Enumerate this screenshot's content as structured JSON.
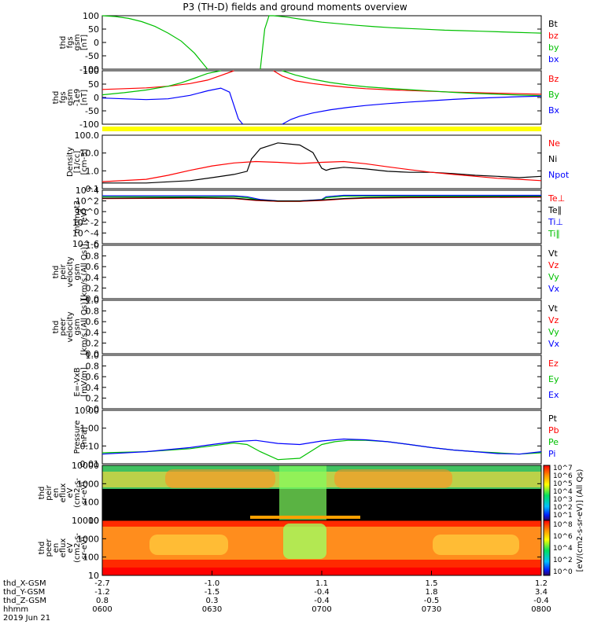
{
  "title": "P3 (TH-D) fields and ground moments overview",
  "date_label": "2019 Jun 21",
  "colors": {
    "black": "#000000",
    "red": "#ff0000",
    "green": "#00c000",
    "blue": "#0000ff",
    "yellow": "#ffff00"
  },
  "chart_data": [
    {
      "id": "fgs",
      "type": "line",
      "ylabel": [
        "thd",
        "fgs",
        "gsm",
        "[nT]"
      ],
      "yticks": [
        "100",
        "50",
        "0",
        "-50",
        "-100"
      ],
      "ylim": [
        -100,
        100
      ],
      "legend": [
        {
          "text": "Bt",
          "color": "#000000"
        },
        {
          "text": "bz",
          "color": "#ff0000"
        },
        {
          "text": "by",
          "color": "#00c000"
        },
        {
          "text": "bx",
          "color": "#0000ff"
        }
      ],
      "series": [
        {
          "name": "by_left",
          "color": "#00c000",
          "x": [
            0,
            3,
            6,
            9,
            12,
            15,
            18,
            21,
            24
          ],
          "y": [
            100,
            97,
            90,
            78,
            60,
            35,
            5,
            -40,
            -100
          ]
        },
        {
          "name": "by_right",
          "color": "#00c000",
          "x": [
            36,
            37,
            38,
            39,
            42,
            46,
            50,
            54,
            58,
            62,
            66,
            70,
            74,
            78,
            82,
            86,
            90,
            94,
            98,
            100
          ],
          "y": [
            -100,
            50,
            100,
            100,
            95,
            85,
            76,
            70,
            64,
            59,
            55,
            52,
            49,
            46,
            44,
            42,
            40,
            38,
            36,
            35
          ]
        }
      ]
    },
    {
      "id": "fgs_sm",
      "type": "line",
      "ylabel": [
        "thd",
        "fgs",
        "gsm",
        "-1e9",
        "[nT]"
      ],
      "yticks": [
        "100",
        "50",
        "0",
        "-50",
        "-100"
      ],
      "ylim": [
        -100,
        100
      ],
      "legend": [
        {
          "text": "Bz",
          "color": "#ff0000"
        },
        {
          "text": "By",
          "color": "#00c000"
        },
        {
          "text": "Bx",
          "color": "#0000ff"
        }
      ],
      "series": [
        {
          "name": "Bz_left",
          "color": "#ff0000",
          "x": [
            0,
            5,
            10,
            15,
            20,
            24,
            27,
            30
          ],
          "y": [
            30,
            33,
            36,
            42,
            52,
            65,
            82,
            100
          ]
        },
        {
          "name": "By_left",
          "color": "#00c000",
          "x": [
            0,
            5,
            10,
            15,
            18,
            21,
            24,
            27
          ],
          "y": [
            10,
            18,
            28,
            42,
            55,
            72,
            90,
            100
          ]
        },
        {
          "name": "Bx_left",
          "color": "#0000ff",
          "x": [
            0,
            5,
            10,
            15,
            20,
            24,
            27,
            29,
            30,
            31,
            32
          ],
          "y": [
            -2,
            -5,
            -8,
            -5,
            8,
            25,
            35,
            20,
            -30,
            -80,
            -100
          ]
        },
        {
          "name": "Bz_right",
          "color": "#ff0000",
          "x": [
            39,
            41,
            44,
            48,
            52,
            56,
            60,
            65,
            70,
            75,
            80,
            85,
            90,
            95,
            100
          ],
          "y": [
            100,
            80,
            62,
            52,
            44,
            38,
            33,
            29,
            26,
            23,
            20,
            18,
            16,
            14,
            12
          ]
        },
        {
          "name": "By_right",
          "color": "#00c000",
          "x": [
            41,
            44,
            48,
            52,
            56,
            60,
            65,
            70,
            75,
            80,
            85,
            90,
            95,
            100
          ],
          "y": [
            100,
            84,
            68,
            56,
            47,
            40,
            34,
            29,
            24,
            19,
            15,
            12,
            9,
            7
          ]
        },
        {
          "name": "Bx_right",
          "color": "#0000ff",
          "x": [
            41,
            43,
            45,
            48,
            52,
            56,
            60,
            65,
            70,
            75,
            80,
            85,
            90,
            95,
            100
          ],
          "y": [
            -100,
            -82,
            -70,
            -58,
            -46,
            -37,
            -30,
            -23,
            -17,
            -12,
            -7,
            -3,
            0,
            3,
            5
          ]
        }
      ]
    },
    {
      "id": "density",
      "type": "line",
      "ylabel": [
        "Density",
        "[1/cc]",
        "[cm-3]"
      ],
      "yticks": [
        "100.0",
        "10.0",
        "1.0",
        "0.1"
      ],
      "log": true,
      "ylim": [
        0.03,
        300
      ],
      "legend": [
        {
          "text": "Ne",
          "color": "#ff0000"
        },
        {
          "text": "Ni",
          "color": "#000000"
        },
        {
          "text": "Npot",
          "color": "#0000ff"
        }
      ],
      "series": [
        {
          "name": "Ni",
          "color": "#000000",
          "x": [
            0,
            10,
            20,
            25,
            30,
            33,
            34,
            36,
            40,
            45,
            48,
            50,
            51,
            52,
            55,
            60,
            65,
            70,
            75,
            80,
            85,
            90,
            95,
            100
          ],
          "y": [
            0.08,
            0.08,
            0.12,
            0.2,
            0.35,
            0.6,
            5,
            30,
            80,
            55,
            15,
            1.0,
            0.7,
            0.9,
            1.2,
            0.9,
            0.6,
            0.5,
            0.5,
            0.4,
            0.3,
            0.25,
            0.2,
            0.25
          ]
        },
        {
          "name": "Ne",
          "color": "#ff0000",
          "x": [
            0,
            10,
            15,
            20,
            25,
            30,
            35,
            40,
            45,
            50,
            55,
            60,
            65,
            70,
            75,
            80,
            85,
            90,
            95,
            100
          ],
          "y": [
            0.1,
            0.15,
            0.3,
            0.7,
            1.5,
            2.5,
            3.2,
            2.8,
            2.3,
            2.8,
            3.2,
            2.2,
            1.3,
            0.8,
            0.5,
            0.35,
            0.25,
            0.18,
            0.15,
            0.12
          ]
        }
      ]
    },
    {
      "id": "temperature",
      "type": "line",
      "ylabel": [
        "momgt3",
        "[eV]"
      ],
      "yticks": [
        "10^4",
        "10^2",
        "10^0",
        "10^-2",
        "10^-4",
        "10^-6"
      ],
      "log": true,
      "ylim": [
        -7,
        4.5
      ],
      "legend": [
        {
          "text": "Te⊥",
          "color": "#ff0000"
        },
        {
          "text": "Te∥",
          "color": "#000000"
        },
        {
          "text": "Ti⊥",
          "color": "#0000ff"
        },
        {
          "text": "Ti∥",
          "color": "#00c000"
        }
      ],
      "series": [
        {
          "name": "Ti",
          "color": "#0000ff",
          "x": [
            0,
            20,
            30,
            33,
            36,
            40,
            45,
            50,
            51,
            55,
            70,
            100
          ],
          "y": [
            3.3,
            3.3,
            3.3,
            3.1,
            2.5,
            2.2,
            2.2,
            2.5,
            3.1,
            3.4,
            3.4,
            3.4
          ]
        },
        {
          "name": "Ti_par",
          "color": "#00c000",
          "x": [
            0,
            20,
            30,
            33,
            36,
            40,
            45,
            50,
            51,
            55,
            70,
            100
          ],
          "y": [
            3.1,
            3.1,
            3.1,
            2.9,
            2.3,
            2.1,
            2.1,
            2.4,
            2.9,
            3.2,
            3.2,
            3.2
          ]
        },
        {
          "name": "Te",
          "color": "#ff0000",
          "x": [
            0,
            20,
            30,
            35,
            40,
            45,
            50,
            55,
            60,
            70,
            100
          ],
          "y": [
            2.7,
            2.8,
            2.7,
            2.3,
            2.1,
            2.1,
            2.3,
            2.6,
            2.8,
            2.9,
            3.0
          ]
        },
        {
          "name": "Te_par",
          "color": "#000000",
          "x": [
            0,
            20,
            30,
            35,
            40,
            45,
            50,
            55,
            60,
            70,
            100
          ],
          "y": [
            2.8,
            2.9,
            2.8,
            2.4,
            2.2,
            2.2,
            2.4,
            2.7,
            2.9,
            3.0,
            3.1
          ]
        }
      ]
    },
    {
      "id": "peir_velocity",
      "type": "line",
      "ylabel": [
        "thd",
        "peir",
        "velocity",
        "gsm",
        "[km/s (All Qs)]"
      ],
      "yticks": [
        "1.0",
        "0.8",
        "0.6",
        "0.4",
        "0.2",
        "0.0"
      ],
      "ylim": [
        0,
        1
      ],
      "legend": [
        {
          "text": "Vt",
          "color": "#000000"
        },
        {
          "text": "Vz",
          "color": "#ff0000"
        },
        {
          "text": "Vy",
          "color": "#00c000"
        },
        {
          "text": "Vx",
          "color": "#0000ff"
        }
      ],
      "series": []
    },
    {
      "id": "peer_velocity",
      "type": "line",
      "ylabel": [
        "thd",
        "peer",
        "velocity",
        "gsm",
        "[km/s (All Qs)]"
      ],
      "yticks": [
        "1.0",
        "0.8",
        "0.6",
        "0.4",
        "0.2",
        "0.0"
      ],
      "ylim": [
        0,
        1
      ],
      "legend": [
        {
          "text": "Vt",
          "color": "#000000"
        },
        {
          "text": "Vz",
          "color": "#ff0000"
        },
        {
          "text": "Vy",
          "color": "#00c000"
        },
        {
          "text": "Vx",
          "color": "#0000ff"
        }
      ],
      "series": []
    },
    {
      "id": "efield",
      "type": "line",
      "ylabel": [
        "E=-VxB",
        "[mV/m]"
      ],
      "yticks": [
        "1.0",
        "0.8",
        "0.6",
        "0.4",
        "0.2",
        "0.0"
      ],
      "ylim": [
        0,
        1
      ],
      "legend": [
        {
          "text": "Ez",
          "color": "#ff0000"
        },
        {
          "text": "Ey",
          "color": "#00c000"
        },
        {
          "text": "Ex",
          "color": "#0000ff"
        }
      ],
      "series": []
    },
    {
      "id": "pressure",
      "type": "line",
      "ylabel": [
        "Pressure",
        "[nPa]"
      ],
      "yticks": [
        "10.00",
        "1.00",
        "0.10",
        "0.01"
      ],
      "log": true,
      "ylim": [
        0.004,
        30
      ],
      "legend": [
        {
          "text": "Pt",
          "color": "#000000"
        },
        {
          "text": "Pb",
          "color": "#ff0000"
        },
        {
          "text": "Pe",
          "color": "#00c000"
        },
        {
          "text": "Pi",
          "color": "#0000ff"
        }
      ],
      "series": [
        {
          "name": "Pe",
          "color": "#00c000",
          "x": [
            0,
            10,
            20,
            25,
            30,
            33,
            36,
            40,
            45,
            48,
            50,
            53,
            56,
            60,
            65,
            70,
            75,
            80,
            85,
            90,
            95,
            100
          ],
          "y": [
            0.025,
            0.03,
            0.05,
            0.08,
            0.13,
            0.1,
            0.03,
            0.008,
            0.01,
            0.04,
            0.1,
            0.16,
            0.2,
            0.2,
            0.16,
            0.1,
            0.06,
            0.04,
            0.03,
            0.025,
            0.02,
            0.025
          ]
        },
        {
          "name": "Pi",
          "color": "#0000ff",
          "x": [
            0,
            10,
            20,
            25,
            30,
            35,
            40,
            45,
            50,
            55,
            60,
            65,
            70,
            75,
            80,
            85,
            90,
            95,
            100
          ],
          "y": [
            0.02,
            0.03,
            0.06,
            0.1,
            0.16,
            0.2,
            0.12,
            0.1,
            0.18,
            0.25,
            0.22,
            0.16,
            0.1,
            0.06,
            0.04,
            0.03,
            0.022,
            0.02,
            0.03
          ]
        }
      ]
    },
    {
      "id": "peir_spectrogram",
      "type": "heatmap",
      "ylabel": [
        "thd",
        "peir",
        "en",
        "eflux",
        "eV",
        "(cm2-s-",
        "sr-eV)"
      ],
      "yticks": [
        "10000",
        "1000",
        "100",
        "10"
      ]
    },
    {
      "id": "peer_spectrogram",
      "type": "heatmap",
      "ylabel": [
        "thd",
        "peer",
        "en",
        "eflux",
        "eV",
        "(cm2-s-",
        "sr-eV)"
      ],
      "yticks": [
        "10000",
        "1000",
        "100",
        "10"
      ]
    }
  ],
  "colorbar": {
    "label": "[eV/(cm2-s-sr-eV)] (All Qs)",
    "top_ticks": [
      "10^7",
      "10^6",
      "10^5",
      "10^4",
      "10^3",
      "10^2",
      "10^1"
    ],
    "bottom_ticks": [
      "10^8",
      "10^6",
      "10^4",
      "10^2",
      "10^0"
    ]
  },
  "xaxis": {
    "row_labels": [
      "thd_X-GSM",
      "thd_Y-GSM",
      "thd_Z-GSM",
      "hhmm"
    ],
    "columns": [
      {
        "x": 0,
        "values": [
          "-2.7",
          "-1.2",
          "0.8",
          "0600"
        ]
      },
      {
        "x": 25,
        "values": [
          "-1.0",
          "-1.5",
          "0.3",
          "0630"
        ]
      },
      {
        "x": 50,
        "values": [
          "1.1",
          "-0.4",
          "-0.4",
          "0700"
        ]
      },
      {
        "x": 75,
        "values": [
          "1.5",
          "1.8",
          "-0.5",
          "0730"
        ]
      },
      {
        "x": 100,
        "values": [
          "1.2",
          "3.4",
          "-0.4",
          "0800"
        ]
      }
    ]
  }
}
